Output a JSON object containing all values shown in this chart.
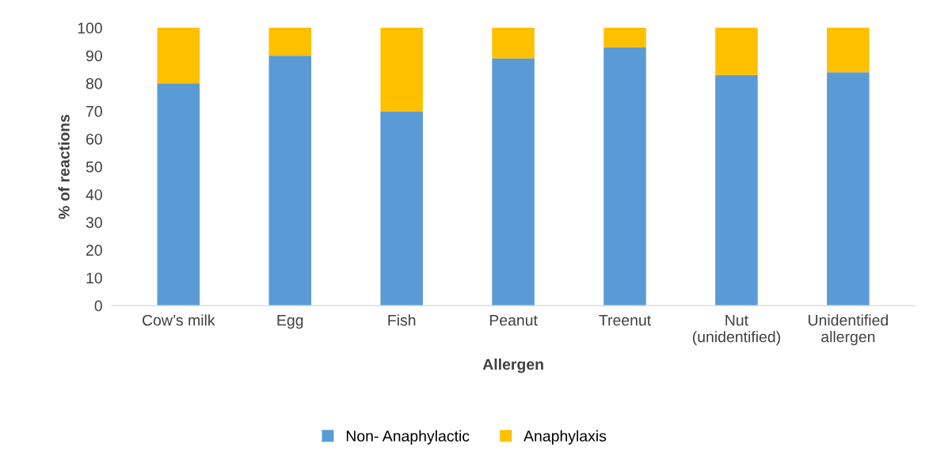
{
  "chart_data": {
    "type": "bar",
    "stacked": true,
    "xlabel": "Allergen",
    "ylabel": "% of reactions",
    "categories": [
      "Cow’s milk",
      "Egg",
      "Fish",
      "Peanut",
      "Treenut",
      "Nut\n(unidentified)",
      "Unidentified\nallergen"
    ],
    "series": [
      {
        "name": "Non- Anaphylactic",
        "color": "#5b9bd5",
        "values": [
          80,
          90,
          70,
          89,
          93,
          83,
          84
        ]
      },
      {
        "name": "Anaphylaxis",
        "color": "#ffc000",
        "values": [
          20,
          10,
          30,
          11,
          7,
          17,
          16
        ]
      }
    ],
    "ylim": [
      0,
      100
    ],
    "yticks": [
      0,
      10,
      20,
      30,
      40,
      50,
      60,
      70,
      80,
      90,
      100
    ],
    "grid": false,
    "legend": "bottom"
  }
}
